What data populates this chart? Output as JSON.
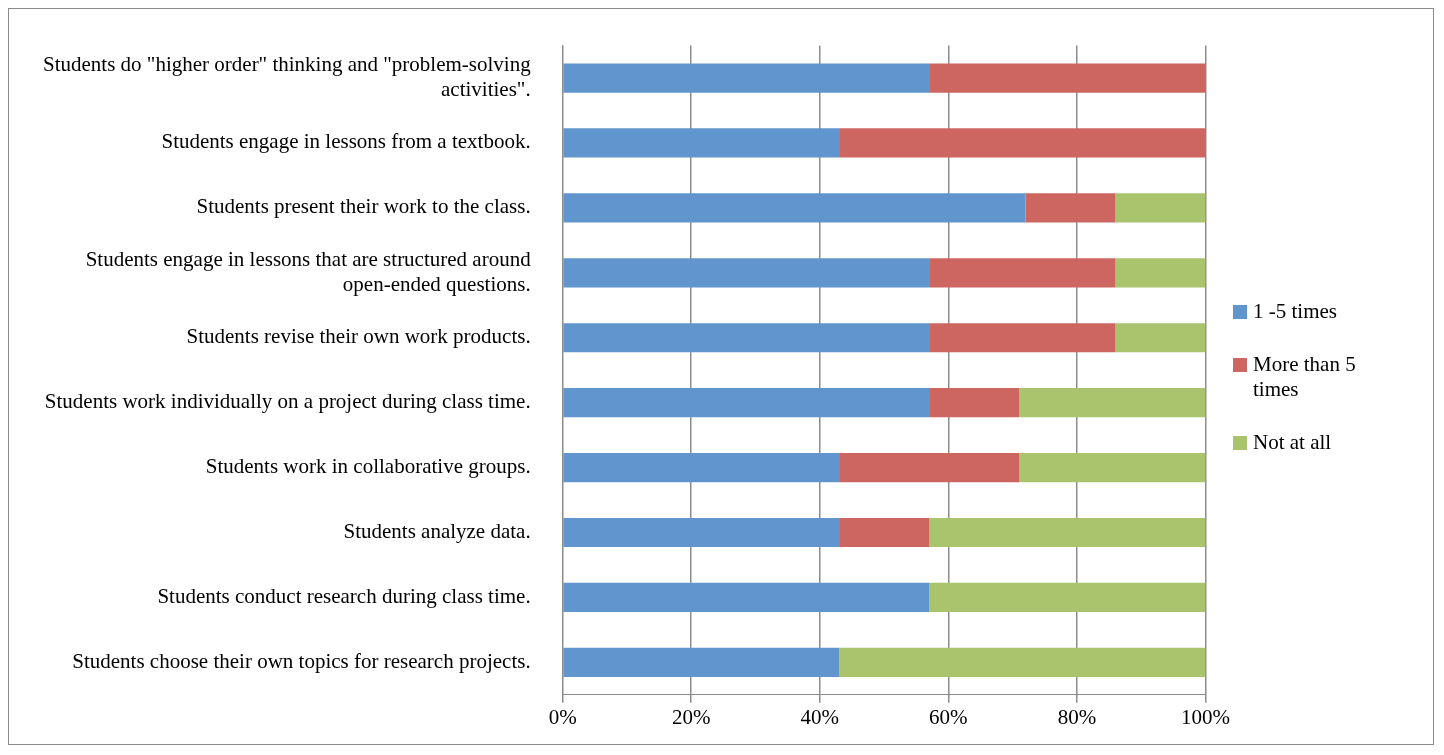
{
  "chart_data": {
    "type": "bar",
    "orientation": "horizontal",
    "stacked": true,
    "categories": [
      "Students do \"higher order\" thinking and \"problem-solving activities\".",
      "Students engage in lessons from a textbook.",
      "Students present their work to the class.",
      "Students engage in lessons that are structured around open-ended questions.",
      "Students revise their own work products.",
      "Students work individually on a project during class time.",
      "Students work in collaborative groups.",
      "Students analyze data.",
      "Students conduct research during class time.",
      "Students choose their own topics for research projects."
    ],
    "series": [
      {
        "name": "1 -5 times",
        "color": "#6095cd",
        "values": [
          57,
          43,
          72,
          57,
          57,
          57,
          43,
          43,
          57,
          43
        ]
      },
      {
        "name": "More than 5 times",
        "color": "#cd6660",
        "values": [
          43,
          57,
          14,
          29,
          29,
          14,
          28,
          14,
          0,
          0
        ]
      },
      {
        "name": "Not at all",
        "color": "#a9c46c",
        "values": [
          0,
          0,
          14,
          14,
          14,
          29,
          29,
          43,
          43,
          57
        ]
      }
    ],
    "xlim": [
      0,
      100
    ],
    "xticks": [
      {
        "value": 0,
        "label": "0%"
      },
      {
        "value": 20,
        "label": "20%"
      },
      {
        "value": 40,
        "label": "40%"
      },
      {
        "value": 60,
        "label": "60%"
      },
      {
        "value": 80,
        "label": "80%"
      },
      {
        "value": 100,
        "label": "100%"
      }
    ],
    "grid": "x",
    "legend": "right"
  }
}
